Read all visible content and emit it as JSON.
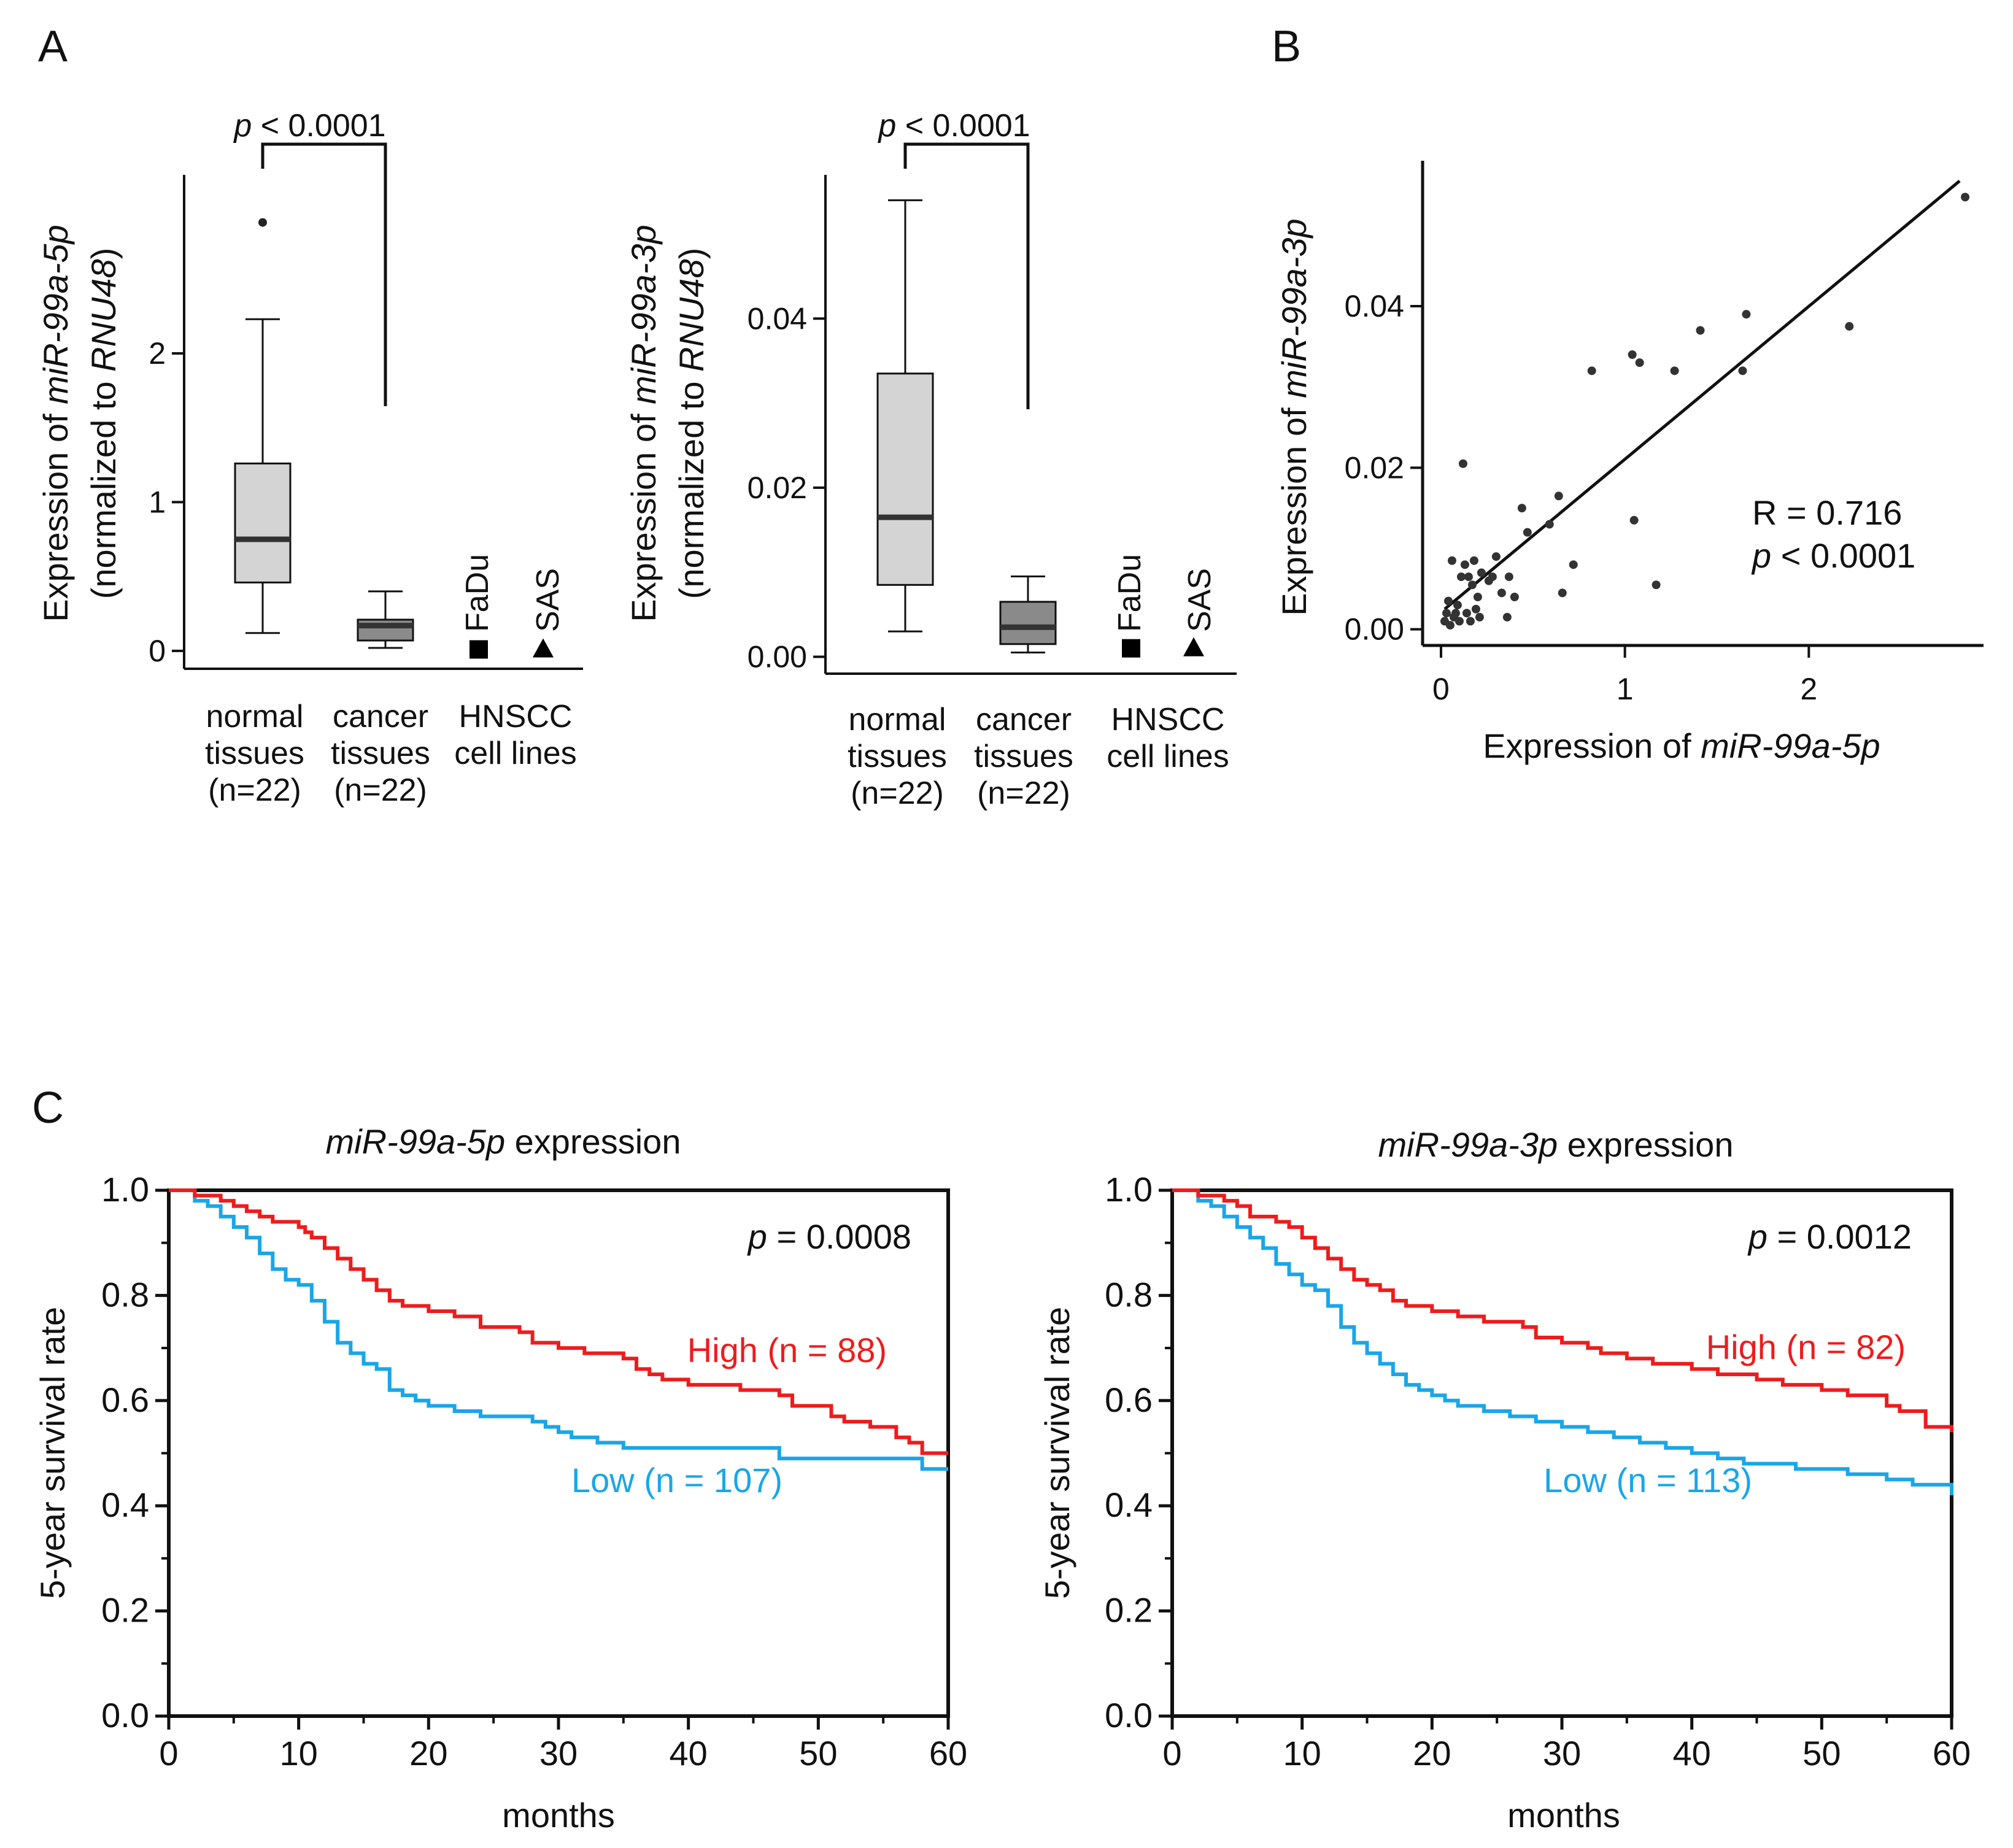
{
  "panels": {
    "A": "A",
    "B": "B",
    "C": "C"
  },
  "chart_data": [
    {
      "id": "A1",
      "type": "box",
      "ylabel_line1_prefix": "Expression of ",
      "ylabel_line1_gene": "miR-99a-5p",
      "ylabel_line2_prefix": "(normalized to ",
      "ylabel_line2_gene": "RNU48",
      "ylabel_line2_suffix": ")",
      "yticks": [
        "0",
        "1",
        "2"
      ],
      "ylim": [
        -0.12,
        3.2
      ],
      "significance": {
        "p_italic": "p",
        "p_text": " < 0.0001"
      },
      "groups": [
        {
          "line1": "normal",
          "line2": "tissues",
          "line3": "(n=22)",
          "min": 0.12,
          "q1": 0.46,
          "median": 0.75,
          "q3": 1.26,
          "max": 2.23,
          "outliers": [
            2.88
          ]
        },
        {
          "line1": "cancer",
          "line2": "tissues",
          "line3": "(n=22)",
          "min": 0.02,
          "q1": 0.07,
          "median": 0.17,
          "q3": 0.21,
          "max": 0.4,
          "outliers": []
        }
      ],
      "cell_lines_label": {
        "line1": "HNSCC",
        "line2": "cell lines"
      },
      "cell_lines": [
        {
          "name": "FaDu",
          "marker": "square",
          "value": 0.01
        },
        {
          "name": "SAS",
          "marker": "triangle",
          "value": 0.01
        }
      ]
    },
    {
      "id": "A2",
      "type": "box",
      "ylabel_line1_prefix": "Expression of ",
      "ylabel_line1_gene": "miR-99a-3p",
      "ylabel_line2_prefix": "(normalized to ",
      "ylabel_line2_gene": "RNU48",
      "ylabel_line2_suffix": ")",
      "yticks": [
        "0.00",
        "0.02",
        "0.04"
      ],
      "ylim": [
        -0.002,
        0.057
      ],
      "significance": {
        "p_italic": "p",
        "p_text": " < 0.0001"
      },
      "groups": [
        {
          "line1": "normal",
          "line2": "tissues",
          "line3": "(n=22)",
          "min": 0.003,
          "q1": 0.0085,
          "median": 0.0165,
          "q3": 0.0335,
          "max": 0.054,
          "outliers": []
        },
        {
          "line1": "cancer",
          "line2": "tissues",
          "line3": "(n=22)",
          "min": 0.0005,
          "q1": 0.0015,
          "median": 0.0035,
          "q3": 0.0065,
          "max": 0.0095,
          "outliers": []
        }
      ],
      "cell_lines_label": {
        "line1": "HNSCC",
        "line2": "cell lines"
      },
      "cell_lines": [
        {
          "name": "FaDu",
          "marker": "square",
          "value": 0.001
        },
        {
          "name": "SAS",
          "marker": "triangle",
          "value": 0.001
        }
      ]
    },
    {
      "id": "B",
      "type": "scatter",
      "xlabel_prefix": "Expression of ",
      "xlabel_gene": "miR-99a-5p",
      "ylabel_prefix": "Expression of ",
      "ylabel_gene": "miR-99a-3p",
      "xticks": [
        "0",
        "1",
        "2"
      ],
      "yticks": [
        "0.00",
        "0.02",
        "0.04"
      ],
      "xlim": [
        -0.1,
        2.95
      ],
      "ylim": [
        -0.002,
        0.058
      ],
      "stats": {
        "r_text": "R = 0.716",
        "p_italic": "p",
        "p_text": " < 0.0001"
      },
      "fit_line": [
        [
          0.02,
          0.0025
        ],
        [
          2.82,
          0.0555
        ]
      ],
      "points": [
        [
          2.85,
          0.0535
        ],
        [
          2.22,
          0.0375
        ],
        [
          1.66,
          0.039
        ],
        [
          1.64,
          0.032
        ],
        [
          1.41,
          0.037
        ],
        [
          1.27,
          0.032
        ],
        [
          1.08,
          0.033
        ],
        [
          1.04,
          0.034
        ],
        [
          0.82,
          0.032
        ],
        [
          0.12,
          0.0205
        ],
        [
          0.64,
          0.0165
        ],
        [
          0.59,
          0.013
        ],
        [
          0.47,
          0.012
        ],
        [
          0.44,
          0.015
        ],
        [
          1.05,
          0.0135
        ],
        [
          0.72,
          0.008
        ],
        [
          0.66,
          0.0045
        ],
        [
          1.17,
          0.0055
        ],
        [
          0.37,
          0.0065
        ],
        [
          0.33,
          0.0045
        ],
        [
          0.3,
          0.009
        ],
        [
          0.28,
          0.0065
        ],
        [
          0.26,
          0.006
        ],
        [
          0.22,
          0.007
        ],
        [
          0.18,
          0.0085
        ],
        [
          0.17,
          0.0055
        ],
        [
          0.15,
          0.0065
        ],
        [
          0.13,
          0.008
        ],
        [
          0.11,
          0.0065
        ],
        [
          0.09,
          0.003
        ],
        [
          0.06,
          0.0085
        ],
        [
          0.04,
          0.0035
        ],
        [
          0.03,
          0.002
        ],
        [
          0.02,
          0.001
        ],
        [
          0.05,
          0.0005
        ],
        [
          0.07,
          0.0015
        ],
        [
          0.1,
          0.001
        ],
        [
          0.14,
          0.002
        ],
        [
          0.16,
          0.001
        ],
        [
          0.19,
          0.0025
        ],
        [
          0.21,
          0.0015
        ],
        [
          0.4,
          0.004
        ],
        [
          0.36,
          0.0015
        ],
        [
          0.2,
          0.004
        ],
        [
          0.08,
          0.002
        ]
      ]
    },
    {
      "id": "C1",
      "type": "line",
      "title_gene": "miR-99a-5p",
      "title_suffix": " expression",
      "xlabel": "months",
      "ylabel": "5-year survival rate",
      "xticks": [
        "0",
        "10",
        "20",
        "30",
        "40",
        "50",
        "60"
      ],
      "yticks": [
        "0.0",
        "0.2",
        "0.4",
        "0.6",
        "0.8",
        "1.0"
      ],
      "xlim": [
        0,
        60
      ],
      "ylim": [
        0,
        1
      ],
      "p_italic": "p",
      "p_text": " = 0.0008",
      "series": [
        {
          "name": "High (n = 88)",
          "color": "#ee1c1c",
          "x": [
            0,
            2,
            4,
            5,
            6,
            7,
            8,
            10,
            10.5,
            11,
            12,
            13,
            14,
            15,
            16,
            17,
            18,
            20,
            22,
            24,
            27,
            28,
            30,
            32,
            35,
            36,
            37,
            38,
            40,
            44,
            47,
            48,
            51,
            52,
            54,
            56,
            57,
            58,
            60
          ],
          "y": [
            1.0,
            0.99,
            0.98,
            0.97,
            0.96,
            0.95,
            0.94,
            0.93,
            0.92,
            0.91,
            0.89,
            0.87,
            0.85,
            0.83,
            0.81,
            0.79,
            0.78,
            0.77,
            0.76,
            0.74,
            0.73,
            0.71,
            0.7,
            0.69,
            0.68,
            0.66,
            0.65,
            0.64,
            0.63,
            0.62,
            0.61,
            0.59,
            0.57,
            0.56,
            0.55,
            0.53,
            0.52,
            0.5,
            0.5
          ]
        },
        {
          "name": "Low (n = 107)",
          "color": "#1aa6e8",
          "x": [
            0,
            2,
            3,
            4,
            5,
            6,
            7,
            8,
            9,
            10,
            11,
            12,
            13,
            14,
            15,
            16,
            17,
            18,
            19,
            20,
            22,
            24,
            26,
            28,
            29,
            30,
            31,
            33,
            35,
            36,
            47,
            57,
            58,
            60
          ],
          "y": [
            1.0,
            0.98,
            0.97,
            0.95,
            0.93,
            0.91,
            0.88,
            0.85,
            0.83,
            0.82,
            0.79,
            0.75,
            0.71,
            0.69,
            0.67,
            0.66,
            0.62,
            0.61,
            0.6,
            0.59,
            0.58,
            0.57,
            0.57,
            0.56,
            0.55,
            0.54,
            0.53,
            0.52,
            0.51,
            0.51,
            0.49,
            0.49,
            0.47,
            0.47
          ]
        }
      ]
    },
    {
      "id": "C2",
      "type": "line",
      "title_gene": "miR-99a-3p",
      "title_suffix": " expression",
      "xlabel": "months",
      "ylabel": "5-year survival rate",
      "xticks": [
        "0",
        "10",
        "20",
        "30",
        "40",
        "50",
        "60"
      ],
      "yticks": [
        "0.0",
        "0.2",
        "0.4",
        "0.6",
        "0.8",
        "1.0"
      ],
      "xlim": [
        0,
        60
      ],
      "ylim": [
        0,
        1
      ],
      "p_italic": "p",
      "p_text": " = 0.0012",
      "series": [
        {
          "name": "High (n = 82)",
          "color": "#ee1c1c",
          "x": [
            0,
            2,
            4,
            5,
            6,
            8,
            9,
            10,
            11,
            12,
            13,
            14,
            15,
            16,
            17,
            18,
            20,
            22,
            24,
            27,
            28,
            30,
            32,
            33,
            35,
            37,
            40,
            42,
            45,
            47,
            50,
            52,
            55,
            56,
            58,
            60
          ],
          "y": [
            1.0,
            0.99,
            0.98,
            0.97,
            0.95,
            0.94,
            0.93,
            0.91,
            0.89,
            0.87,
            0.85,
            0.83,
            0.82,
            0.81,
            0.79,
            0.78,
            0.77,
            0.76,
            0.75,
            0.74,
            0.72,
            0.71,
            0.7,
            0.69,
            0.68,
            0.67,
            0.66,
            0.65,
            0.64,
            0.63,
            0.62,
            0.61,
            0.59,
            0.58,
            0.55,
            0.54
          ]
        },
        {
          "name": "Low (n = 113)",
          "color": "#1aa6e8",
          "x": [
            0,
            2,
            3,
            4,
            5,
            6,
            7,
            8,
            9,
            10,
            11,
            12,
            13,
            14,
            15,
            16,
            17,
            18,
            19,
            20,
            21,
            22,
            24,
            26,
            28,
            30,
            32,
            34,
            36,
            38,
            40,
            42,
            44,
            46,
            48,
            50,
            52,
            55,
            57,
            60
          ],
          "y": [
            1.0,
            0.98,
            0.97,
            0.95,
            0.93,
            0.91,
            0.89,
            0.86,
            0.84,
            0.82,
            0.81,
            0.78,
            0.74,
            0.71,
            0.69,
            0.67,
            0.65,
            0.63,
            0.62,
            0.61,
            0.6,
            0.59,
            0.58,
            0.57,
            0.56,
            0.55,
            0.54,
            0.53,
            0.52,
            0.51,
            0.5,
            0.49,
            0.48,
            0.48,
            0.47,
            0.47,
            0.46,
            0.45,
            0.44,
            0.42
          ]
        }
      ]
    }
  ]
}
